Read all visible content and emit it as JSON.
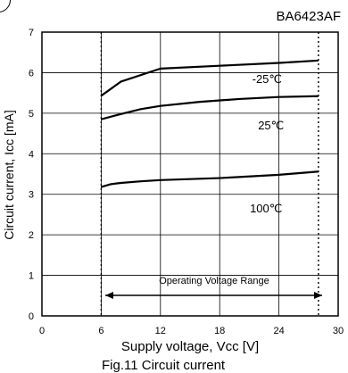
{
  "part_number": "BA6423AF",
  "caption": "Fig.11 Circuit current",
  "chart_data": {
    "type": "line",
    "title": "",
    "xlabel": "Supply voltage, Vcc [V]",
    "ylabel": "Circuit current, Icc [mA]",
    "xlim": [
      0,
      30
    ],
    "ylim": [
      0,
      7
    ],
    "xticks": [
      0,
      6,
      12,
      18,
      24,
      30
    ],
    "yticks": [
      0,
      1,
      2,
      3,
      4,
      5,
      6,
      7
    ],
    "grid": true,
    "series": [
      {
        "name": "-25℃",
        "x": [
          6,
          8,
          12,
          18,
          24,
          28
        ],
        "y": [
          5.43,
          5.78,
          6.1,
          6.17,
          6.24,
          6.3
        ]
      },
      {
        "name": "25℃",
        "x": [
          6,
          8,
          10,
          12,
          16,
          20,
          24,
          28
        ],
        "y": [
          4.85,
          4.98,
          5.1,
          5.18,
          5.28,
          5.35,
          5.4,
          5.42
        ]
      },
      {
        "name": "100℃",
        "x": [
          6,
          7,
          8,
          10,
          12,
          18,
          24,
          28
        ],
        "y": [
          3.18,
          3.25,
          3.28,
          3.32,
          3.35,
          3.4,
          3.48,
          3.56
        ]
      }
    ],
    "series_label_positions": [
      {
        "x": 22.8,
        "y": 5.75
      },
      {
        "x": 23.2,
        "y": 4.6
      },
      {
        "x": 22.7,
        "y": 2.55
      }
    ],
    "operating_range": {
      "label": "Operating Voltage Range",
      "x_start": 6,
      "x_end": 28,
      "y": 0.5
    }
  },
  "colors": {
    "line": "#000000",
    "grid": "#000000",
    "background": "#ffffff"
  }
}
